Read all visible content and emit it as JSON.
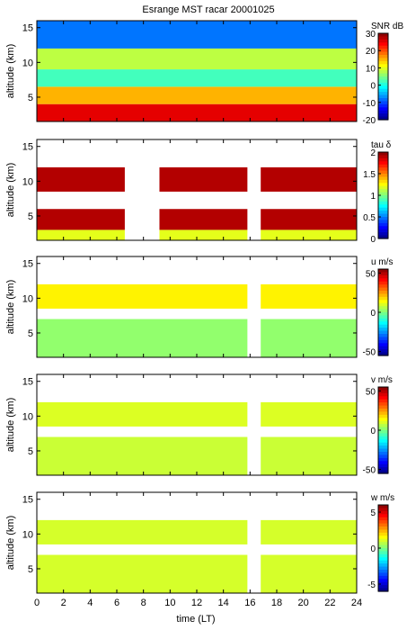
{
  "chart_data": {
    "type": "heatmap",
    "title": "Esrange MST racar 20001025",
    "xlabel": "time (LT)",
    "x_ticks": [
      0,
      2,
      4,
      6,
      8,
      10,
      12,
      14,
      16,
      18,
      20,
      22,
      24
    ],
    "xlim": [
      0,
      24
    ],
    "panels": [
      {
        "name": "SNR",
        "ylabel": "altitude (km)",
        "colorbar_label": "SNR dB",
        "clim": [
          -20,
          30
        ],
        "colorbar_ticks": [
          30,
          20,
          10,
          0,
          -10,
          -20
        ],
        "ylim": [
          1.5,
          16
        ],
        "y_ticks": [
          5,
          10,
          15
        ],
        "layers": [
          {
            "alt": [
              1.5,
              4.0
            ],
            "value": 25
          },
          {
            "alt": [
              4.0,
              6.5
            ],
            "value": 15
          },
          {
            "alt": [
              6.5,
              9.0
            ],
            "value": 2
          },
          {
            "alt": [
              9.0,
              12.0
            ],
            "value": 8
          },
          {
            "alt": [
              12.0,
              16.0
            ],
            "value": -8
          }
        ],
        "data_gaps": []
      },
      {
        "name": "tau",
        "ylabel": "altitude (km)",
        "colorbar_label": "tau δ",
        "clim": [
          0,
          2
        ],
        "colorbar_ticks": [
          2,
          1.5,
          1,
          0.5,
          0
        ],
        "ylim": [
          1.5,
          16
        ],
        "y_ticks": [
          5,
          10,
          15
        ],
        "layers": [
          {
            "alt": [
              1.5,
              3.0
            ],
            "value": 1.2
          },
          {
            "alt": [
              3.0,
              6.0
            ],
            "value": 1.9
          },
          {
            "alt": [
              6.0,
              8.5
            ],
            "value": null
          },
          {
            "alt": [
              8.5,
              12.0
            ],
            "value": 1.9
          },
          {
            "alt": [
              12.0,
              16.0
            ],
            "value": null
          }
        ],
        "data_gaps": [
          [
            6.6,
            9.2
          ],
          [
            15.8,
            16.8
          ]
        ]
      },
      {
        "name": "u",
        "ylabel": "altitude (km)",
        "colorbar_label": "u m/s",
        "clim": [
          -55,
          55
        ],
        "colorbar_ticks": [
          50,
          0,
          -50
        ],
        "ylim": [
          1.5,
          16
        ],
        "y_ticks": [
          5,
          10,
          15
        ],
        "layers": [
          {
            "alt": [
              1.5,
              7.0
            ],
            "value": 2
          },
          {
            "alt": [
              7.0,
              8.5
            ],
            "value": null
          },
          {
            "alt": [
              8.5,
              12.0
            ],
            "value": 15
          },
          {
            "alt": [
              12.0,
              16.0
            ],
            "value": null
          }
        ],
        "data_gaps": [
          [
            15.8,
            16.8
          ]
        ]
      },
      {
        "name": "v",
        "ylabel": "altitude (km)",
        "colorbar_label": "v m/s",
        "clim": [
          -55,
          55
        ],
        "colorbar_ticks": [
          50,
          0,
          -50
        ],
        "ylim": [
          1.5,
          16
        ],
        "y_ticks": [
          5,
          10,
          15
        ],
        "layers": [
          {
            "alt": [
              1.5,
              7.0
            ],
            "value": 8
          },
          {
            "alt": [
              7.0,
              8.5
            ],
            "value": null
          },
          {
            "alt": [
              8.5,
              12.0
            ],
            "value": 10
          },
          {
            "alt": [
              12.0,
              16.0
            ],
            "value": null
          }
        ],
        "data_gaps": [
          [
            15.8,
            16.8
          ]
        ]
      },
      {
        "name": "w",
        "ylabel": "altitude (km)",
        "colorbar_label": "w m/s",
        "clim": [
          -6,
          6
        ],
        "colorbar_ticks": [
          5,
          0,
          -5
        ],
        "ylim": [
          1.5,
          16
        ],
        "y_ticks": [
          5,
          10,
          15
        ],
        "layers": [
          {
            "alt": [
              1.5,
              7.0
            ],
            "value": 1
          },
          {
            "alt": [
              7.0,
              8.5
            ],
            "value": null
          },
          {
            "alt": [
              8.5,
              12.0
            ],
            "value": 1
          },
          {
            "alt": [
              12.0,
              16.0
            ],
            "value": null
          }
        ],
        "data_gaps": [
          [
            15.8,
            16.8
          ]
        ]
      }
    ]
  }
}
